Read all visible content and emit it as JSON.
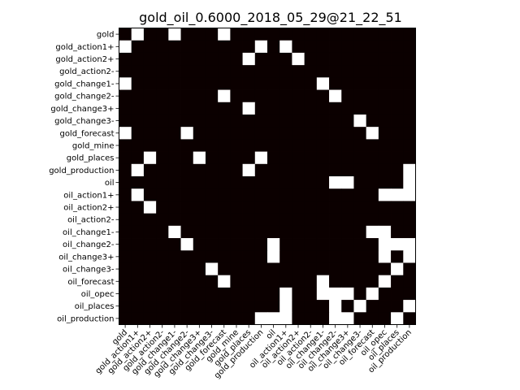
{
  "chart_data": {
    "type": "heatmap",
    "title": "gold_oil_0.6000_2018_05_29@21_22_51",
    "xlabel": "",
    "ylabel": "",
    "labels": [
      "gold",
      "gold_action1+",
      "gold_action2+",
      "gold_action2-",
      "gold_change1-",
      "gold_change2-",
      "gold_change3+",
      "gold_change3-",
      "gold_forecast",
      "gold_mine",
      "gold_places",
      "gold_production",
      "oil",
      "oil_action1+",
      "oil_action2+",
      "oil_action2-",
      "oil_change1-",
      "oil_change2-",
      "oil_change3+",
      "oil_change3-",
      "oil_forecast",
      "oil_opec",
      "oil_places",
      "oil_production"
    ],
    "colors": {
      "value_1": "#ffffff",
      "value_0": "#0b0000"
    },
    "matrix": [
      [
        0,
        1,
        0,
        0,
        1,
        0,
        0,
        0,
        1,
        0,
        0,
        0,
        0,
        0,
        0,
        0,
        0,
        0,
        0,
        0,
        0,
        0,
        0,
        0
      ],
      [
        1,
        0,
        0,
        0,
        0,
        0,
        0,
        0,
        0,
        0,
        0,
        1,
        0,
        1,
        0,
        0,
        0,
        0,
        0,
        0,
        0,
        0,
        0,
        0
      ],
      [
        0,
        0,
        0,
        0,
        0,
        0,
        0,
        0,
        0,
        0,
        1,
        0,
        0,
        0,
        1,
        0,
        0,
        0,
        0,
        0,
        0,
        0,
        0,
        0
      ],
      [
        0,
        0,
        0,
        0,
        0,
        0,
        0,
        0,
        0,
        0,
        0,
        0,
        0,
        0,
        0,
        0,
        0,
        0,
        0,
        0,
        0,
        0,
        0,
        0
      ],
      [
        1,
        0,
        0,
        0,
        0,
        0,
        0,
        0,
        0,
        0,
        0,
        0,
        0,
        0,
        0,
        0,
        1,
        0,
        0,
        0,
        0,
        0,
        0,
        0
      ],
      [
        0,
        0,
        0,
        0,
        0,
        0,
        0,
        0,
        1,
        0,
        0,
        0,
        0,
        0,
        0,
        0,
        0,
        1,
        0,
        0,
        0,
        0,
        0,
        0
      ],
      [
        0,
        0,
        0,
        0,
        0,
        0,
        0,
        0,
        0,
        0,
        1,
        0,
        0,
        0,
        0,
        0,
        0,
        0,
        0,
        0,
        0,
        0,
        0,
        0
      ],
      [
        0,
        0,
        0,
        0,
        0,
        0,
        0,
        0,
        0,
        0,
        0,
        0,
        0,
        0,
        0,
        0,
        0,
        0,
        0,
        1,
        0,
        0,
        0,
        0
      ],
      [
        1,
        0,
        0,
        0,
        0,
        1,
        0,
        0,
        0,
        0,
        0,
        0,
        0,
        0,
        0,
        0,
        0,
        0,
        0,
        0,
        1,
        0,
        0,
        0
      ],
      [
        0,
        0,
        0,
        0,
        0,
        0,
        0,
        0,
        0,
        0,
        0,
        0,
        0,
        0,
        0,
        0,
        0,
        0,
        0,
        0,
        0,
        0,
        0,
        0
      ],
      [
        0,
        0,
        1,
        0,
        0,
        0,
        1,
        0,
        0,
        0,
        0,
        1,
        0,
        0,
        0,
        0,
        0,
        0,
        0,
        0,
        0,
        0,
        0,
        0
      ],
      [
        0,
        1,
        0,
        0,
        0,
        0,
        0,
        0,
        0,
        0,
        1,
        0,
        0,
        0,
        0,
        0,
        0,
        0,
        0,
        0,
        0,
        0,
        0,
        1
      ],
      [
        0,
        0,
        0,
        0,
        0,
        0,
        0,
        0,
        0,
        0,
        0,
        0,
        0,
        0,
        0,
        0,
        0,
        1,
        1,
        0,
        0,
        0,
        0,
        1
      ],
      [
        0,
        1,
        0,
        0,
        0,
        0,
        0,
        0,
        0,
        0,
        0,
        0,
        0,
        0,
        0,
        0,
        0,
        0,
        0,
        0,
        0,
        1,
        1,
        1
      ],
      [
        0,
        0,
        1,
        0,
        0,
        0,
        0,
        0,
        0,
        0,
        0,
        0,
        0,
        0,
        0,
        0,
        0,
        0,
        0,
        0,
        0,
        0,
        0,
        0
      ],
      [
        0,
        0,
        0,
        0,
        0,
        0,
        0,
        0,
        0,
        0,
        0,
        0,
        0,
        0,
        0,
        0,
        0,
        0,
        0,
        0,
        0,
        0,
        0,
        0
      ],
      [
        0,
        0,
        0,
        0,
        1,
        0,
        0,
        0,
        0,
        0,
        0,
        0,
        0,
        0,
        0,
        0,
        0,
        0,
        0,
        0,
        1,
        1,
        0,
        0
      ],
      [
        0,
        0,
        0,
        0,
        0,
        1,
        0,
        0,
        0,
        0,
        0,
        0,
        1,
        0,
        0,
        0,
        0,
        0,
        0,
        0,
        0,
        1,
        1,
        1
      ],
      [
        0,
        0,
        0,
        0,
        0,
        0,
        0,
        0,
        0,
        0,
        0,
        0,
        1,
        0,
        0,
        0,
        0,
        0,
        0,
        0,
        0,
        1,
        0,
        1
      ],
      [
        0,
        0,
        0,
        0,
        0,
        0,
        0,
        1,
        0,
        0,
        0,
        0,
        0,
        0,
        0,
        0,
        0,
        0,
        0,
        0,
        0,
        0,
        1,
        0
      ],
      [
        0,
        0,
        0,
        0,
        0,
        0,
        0,
        0,
        1,
        0,
        0,
        0,
        0,
        0,
        0,
        0,
        1,
        0,
        0,
        0,
        0,
        1,
        0,
        0
      ],
      [
        0,
        0,
        0,
        0,
        0,
        0,
        0,
        0,
        0,
        0,
        0,
        0,
        0,
        1,
        0,
        0,
        1,
        1,
        1,
        0,
        1,
        0,
        0,
        0
      ],
      [
        0,
        0,
        0,
        0,
        0,
        0,
        0,
        0,
        0,
        0,
        0,
        0,
        0,
        1,
        0,
        0,
        0,
        1,
        0,
        1,
        0,
        0,
        0,
        1
      ],
      [
        0,
        0,
        0,
        0,
        0,
        0,
        0,
        0,
        0,
        0,
        0,
        1,
        1,
        1,
        0,
        0,
        0,
        1,
        1,
        0,
        0,
        0,
        1,
        0
      ]
    ]
  }
}
